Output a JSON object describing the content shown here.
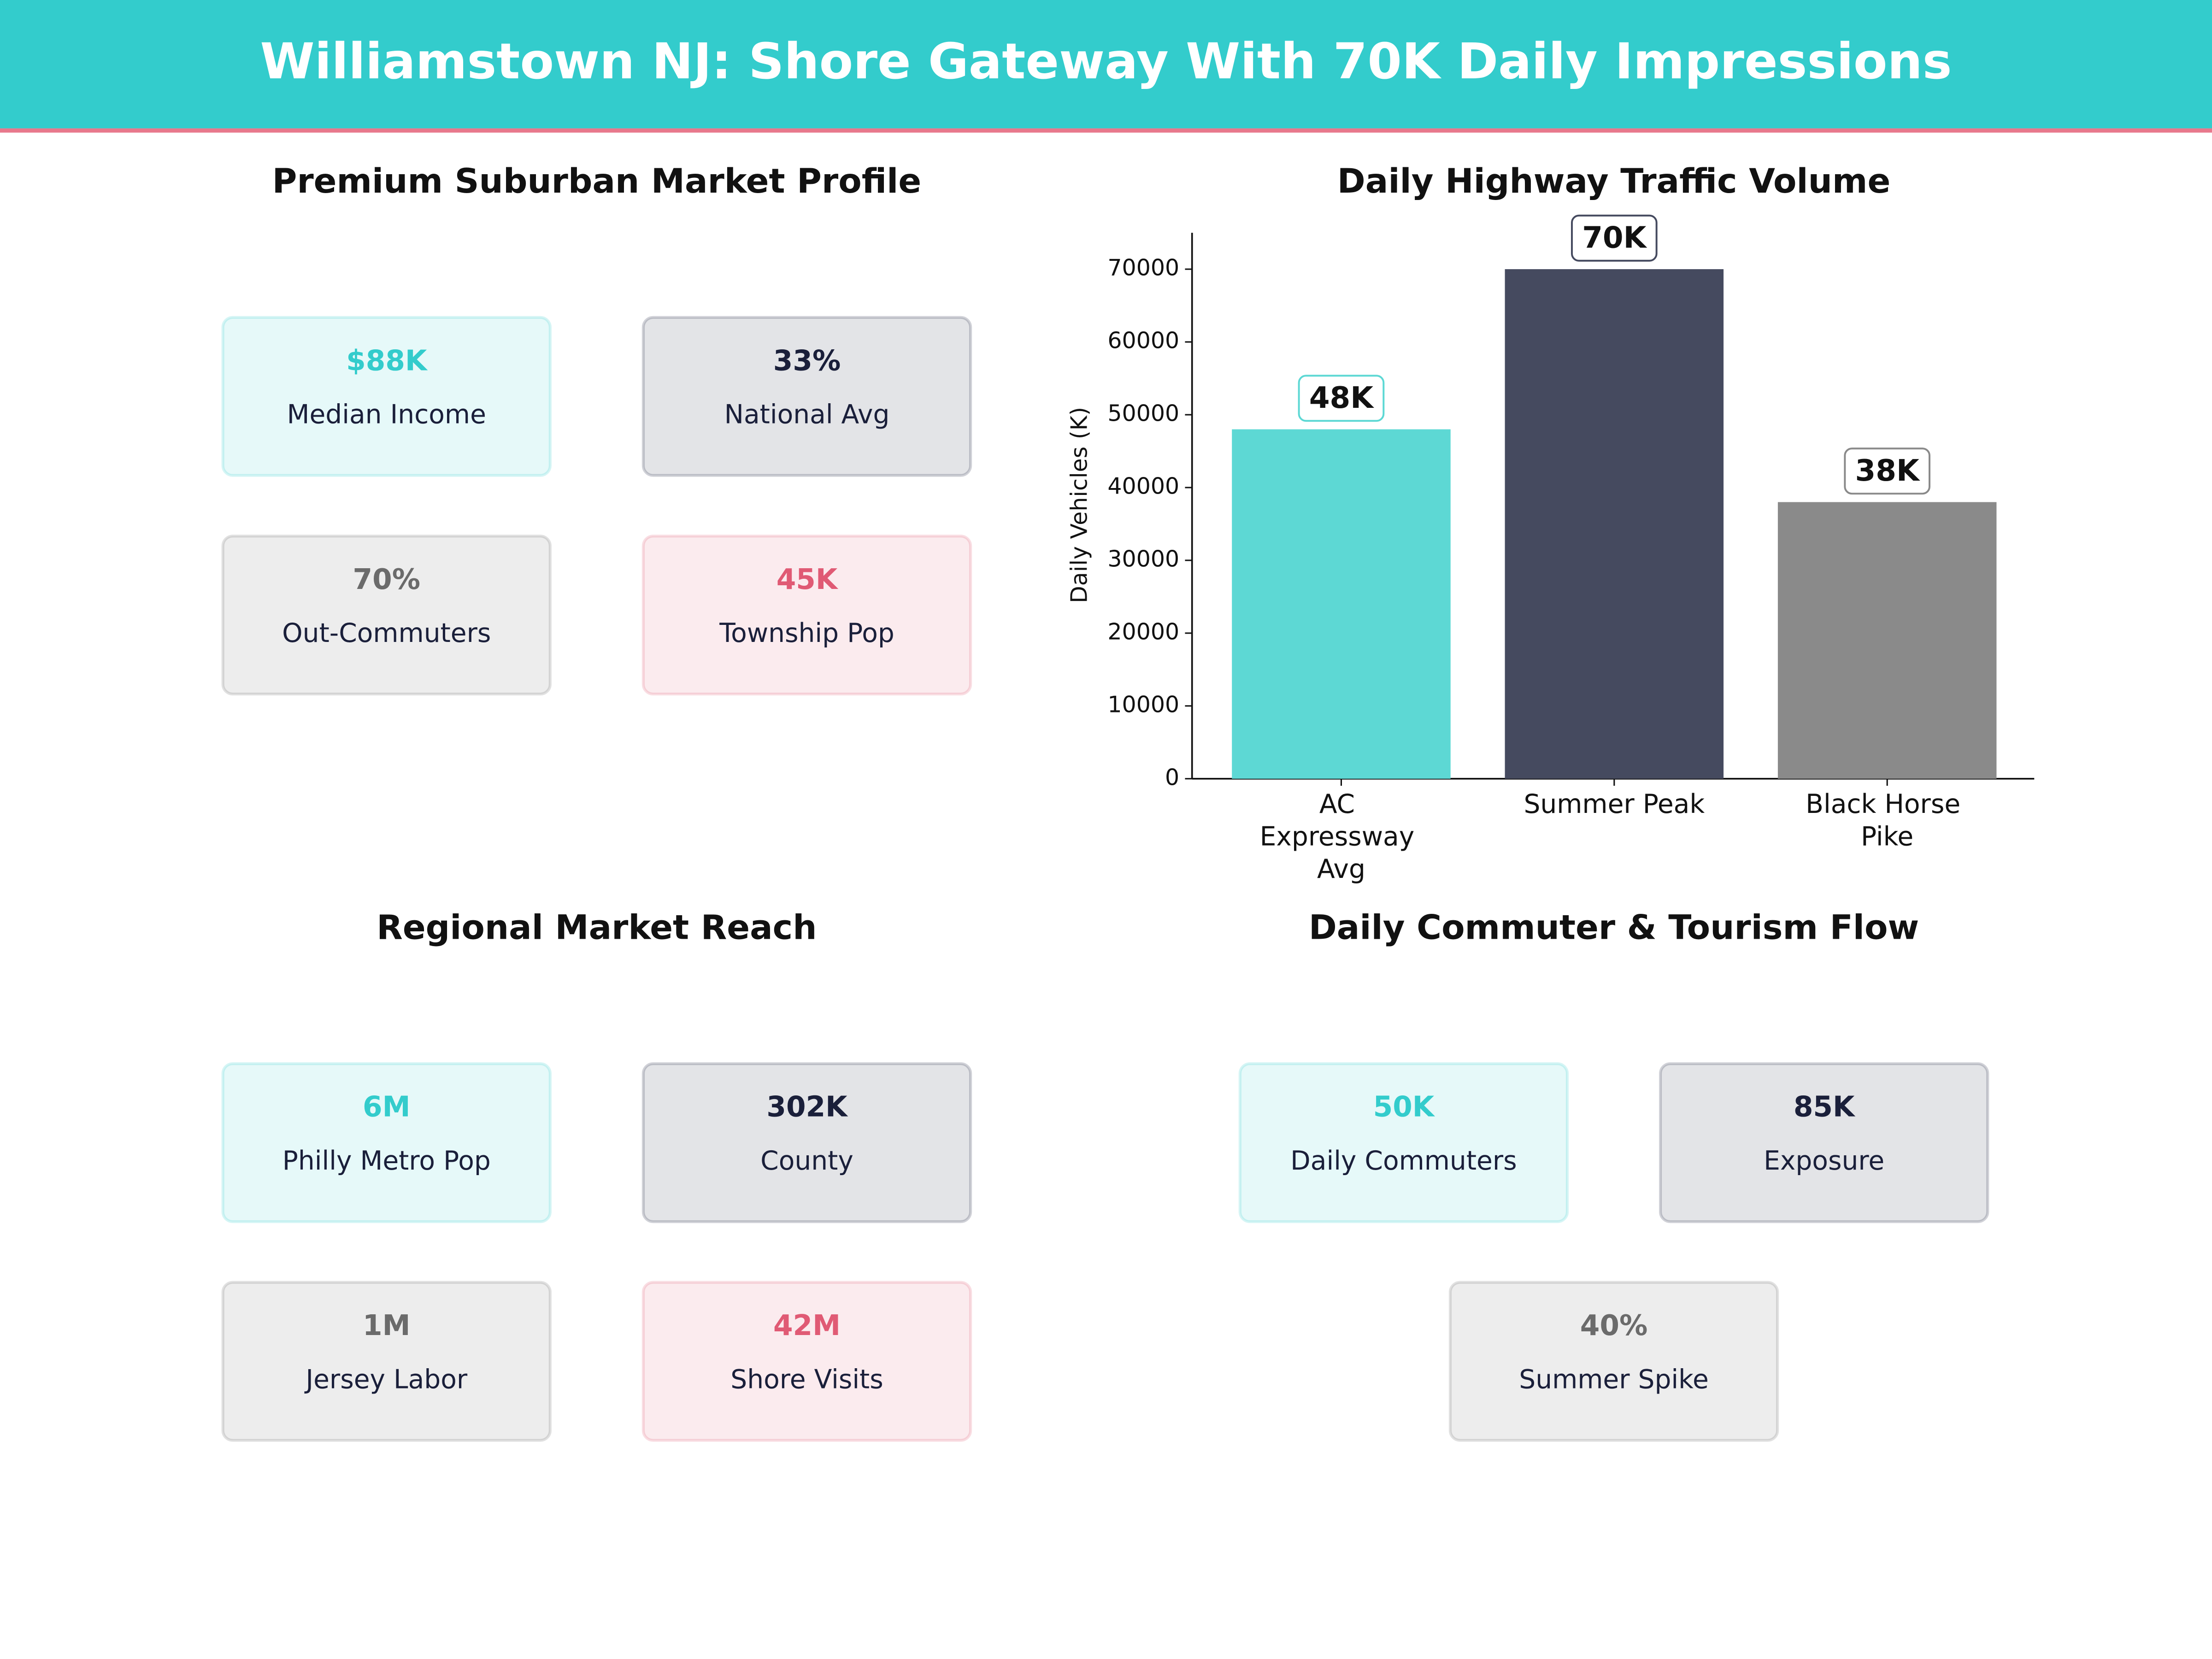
{
  "header": {
    "title": "Williamstown NJ: Shore Gateway With 70K Daily Impressions"
  },
  "panels": [
    {
      "title": "Premium Suburban Market Profile",
      "cards": [
        {
          "value": "$88K",
          "label": "Median Income",
          "color": "#33cccc"
        },
        {
          "value": "33%",
          "label": "National Avg",
          "color": "#1a1f3a"
        },
        {
          "value": "70%",
          "label": "Out-Commuters",
          "color": "#6b6b6b"
        },
        {
          "value": "45K",
          "label": "Township Pop",
          "color": "#e05a74"
        }
      ]
    },
    {
      "title": "Regional Market Reach",
      "cards": [
        {
          "value": "6M",
          "label": "Philly Metro Pop",
          "color": "#33cccc"
        },
        {
          "value": "302K",
          "label": "County",
          "color": "#1a1f3a"
        },
        {
          "value": "1M",
          "label": "Jersey Labor",
          "color": "#6b6b6b"
        },
        {
          "value": "42M",
          "label": "Shore Visits",
          "color": "#e05a74"
        }
      ]
    },
    {
      "title": "Daily Commuter & Tourism Flow",
      "cards": [
        {
          "value": "50K",
          "label": "Daily Commuters",
          "color": "#33cccc"
        },
        {
          "value": "85K",
          "label": "Exposure",
          "color": "#1a1f3a"
        },
        {
          "value": "40%",
          "label": "Summer Spike",
          "color": "#6b6b6b"
        }
      ]
    }
  ],
  "chart_data": {
    "type": "bar",
    "title": "Daily Highway Traffic Volume",
    "y_label": "Daily Vehicles (K)",
    "categories": [
      "AC Expressway Avg",
      "Summer Peak",
      "Black Horse Pike"
    ],
    "values": [
      48000,
      70000,
      38000
    ],
    "value_labels": [
      "48K",
      "70K",
      "38K"
    ],
    "colors": [
      "#5dd8d4",
      "#454a5f",
      "#8a8a8a"
    ],
    "ylim": [
      0,
      75000
    ],
    "yticks": [
      0,
      10000,
      20000,
      30000,
      40000,
      50000,
      60000,
      70000
    ]
  }
}
